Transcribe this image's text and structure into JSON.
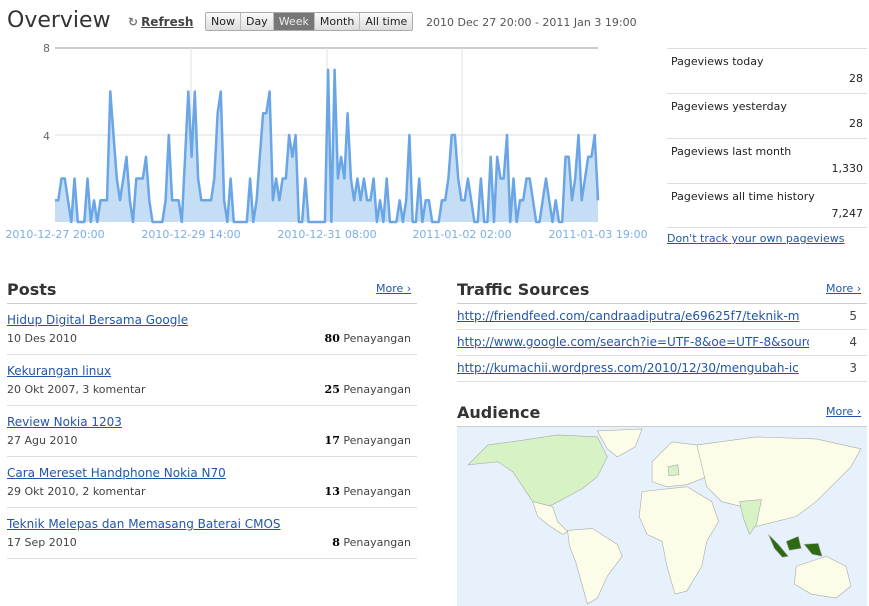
{
  "header": {
    "title": "Overview",
    "refresh_label": "Refresh",
    "refresh_icon": "refresh-icon",
    "ranges": [
      "Now",
      "Day",
      "Week",
      "Month",
      "All time"
    ],
    "active_range": "Week",
    "date_range": "2010 Dec 27 20:00 - 2011 Jan 3 19:00"
  },
  "chart_data": {
    "type": "area",
    "x_range": [
      "2010-12-27 20:00",
      "2011-01-03 19:00"
    ],
    "interval": "hourly",
    "xticks": [
      "2010-12-27 20:00",
      "2010-12-29 14:00",
      "2010-12-31 08:00",
      "2011-01-02 02:00",
      "2011-01-03 19:00"
    ],
    "yticks": [
      "8",
      "4"
    ],
    "ylim": [
      0,
      8
    ],
    "grid": true,
    "line_color": "#6aa6e6",
    "fill_color": "#c6def5",
    "values": [
      1,
      1,
      2,
      2,
      1,
      0,
      2,
      0,
      0,
      0,
      2,
      0,
      1,
      0,
      1,
      1,
      1,
      6,
      4,
      2,
      1,
      2,
      3,
      1,
      0,
      2,
      2,
      2,
      3,
      1,
      0,
      0,
      0,
      0,
      1,
      4,
      1,
      1,
      1,
      0,
      3,
      6,
      3,
      6,
      2,
      1,
      1,
      1,
      1,
      2,
      5,
      6,
      1,
      0,
      2,
      0,
      0,
      0,
      0,
      0,
      2,
      0,
      1,
      3,
      5,
      5,
      6,
      1,
      2,
      1,
      2,
      2,
      4,
      3,
      4,
      0,
      0,
      2,
      0,
      0,
      0,
      0,
      0,
      0,
      7,
      0,
      7,
      2,
      3,
      2,
      5,
      2,
      1,
      2,
      1,
      2,
      1,
      1,
      2,
      0,
      1,
      0,
      2,
      0,
      0,
      0,
      1,
      0,
      1,
      4,
      0,
      0,
      2,
      0,
      1,
      1,
      0,
      0,
      0,
      1,
      1,
      2,
      4,
      4,
      2,
      1,
      1,
      2,
      1,
      0,
      0,
      2,
      0,
      0,
      3,
      0,
      3,
      2,
      2,
      4,
      0,
      2,
      0,
      1,
      1,
      2,
      2,
      1,
      0,
      0,
      1,
      2,
      1,
      0,
      1,
      0,
      0,
      3,
      3,
      1,
      2,
      4,
      1,
      2,
      3,
      3,
      4,
      1
    ]
  },
  "stats": [
    {
      "label": "Pageviews today",
      "value": "28"
    },
    {
      "label": "Pageviews yesterday",
      "value": "28"
    },
    {
      "label": "Pageviews last month",
      "value": "1,330"
    },
    {
      "label": "Pageviews all time history",
      "value": "7,247"
    }
  ],
  "dont_track": "Don't track your own pageviews",
  "posts": {
    "title": "Posts",
    "more": "More ›",
    "items": [
      {
        "title": "Hidup Digital Bersama Google",
        "meta": "10 Des 2010",
        "count": "80",
        "unit": "Penayangan"
      },
      {
        "title": "Kekurangan linux",
        "meta": "20 Okt 2007, 3 komentar",
        "count": "25",
        "unit": "Penayangan"
      },
      {
        "title": "Review Nokia 1203",
        "meta": "27 Agu 2010",
        "count": "17",
        "unit": "Penayangan"
      },
      {
        "title": "Cara Mereset Handphone Nokia N70",
        "meta": "29 Okt 2010, 2 komentar",
        "count": "13",
        "unit": "Penayangan"
      },
      {
        "title": "Teknik Melepas dan Memasang Baterai CMOS",
        "meta": "17 Sep 2010",
        "count": "8",
        "unit": "Penayangan"
      }
    ]
  },
  "traffic": {
    "title": "Traffic Sources",
    "more": "More ›",
    "items": [
      {
        "url": "http://friendfeed.com/candraadiputra/e69625f7/teknik-m",
        "count": "5"
      },
      {
        "url": "http://www.google.com/search?ie=UTF-8&oe=UTF-8&sourc",
        "count": "4"
      },
      {
        "url": "http://kumachii.wordpress.com/2010/12/30/mengubah-ic",
        "count": "3"
      }
    ]
  },
  "audience": {
    "title": "Audience",
    "more": "More ›",
    "map_colors": {
      "ocean": "#e6f1fb",
      "land": "#fbfde9",
      "low": "#d7f2c4",
      "high": "#2d6a12"
    }
  }
}
